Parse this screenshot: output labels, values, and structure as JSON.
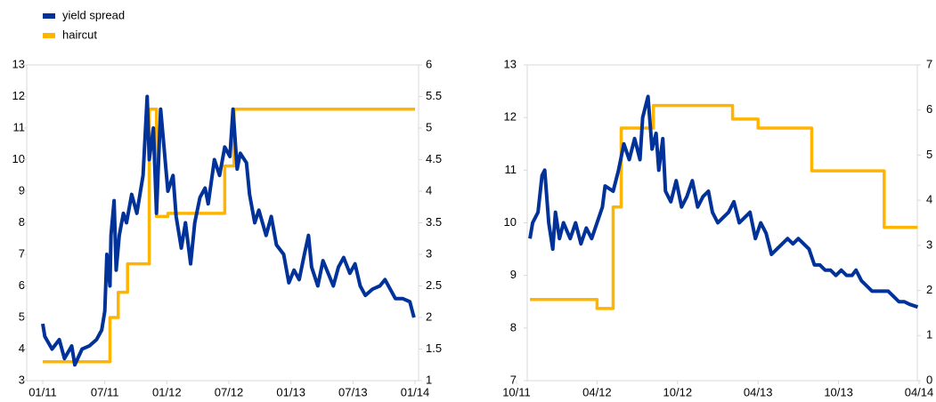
{
  "chart_data": [
    {
      "type": "line",
      "xticks": [
        {
          "value": 0,
          "label": "01/11"
        },
        {
          "value": 6,
          "label": "07/11"
        },
        {
          "value": 12,
          "label": "01/12"
        },
        {
          "value": 18,
          "label": "07/12"
        },
        {
          "value": 24,
          "label": "01/13"
        },
        {
          "value": 30,
          "label": "07/13"
        },
        {
          "value": 36,
          "label": "01/14"
        }
      ],
      "xlim": [
        0,
        36
      ],
      "ylim": [
        3,
        13
      ],
      "yticks": [
        3,
        4,
        5,
        6,
        7,
        8,
        9,
        10,
        11,
        12,
        13
      ],
      "y2lim": [
        1,
        6
      ],
      "y2ticks": [
        1,
        1.5,
        2,
        2.5,
        3,
        3.5,
        4,
        4.5,
        5,
        5.5,
        6
      ],
      "legend": "top-left",
      "series": [
        {
          "name": "haircut",
          "color": "#ffb400",
          "axis": "y2",
          "step": "post",
          "x": [
            0,
            6.5,
            7.3,
            8.2,
            10.3,
            11.0,
            12.1,
            17.6,
            18.5,
            36
          ],
          "values": [
            1.3,
            2.0,
            2.4,
            2.85,
            5.3,
            3.6,
            3.65,
            4.4,
            5.3,
            5.3
          ]
        },
        {
          "name": "yield spread",
          "color": "#003299",
          "axis": "y",
          "x": [
            0,
            0.2,
            0.9,
            1.6,
            2.1,
            2.8,
            3.1,
            3.8,
            4.5,
            5.2,
            5.7,
            6.0,
            6.2,
            6.5,
            6.6,
            6.9,
            7.1,
            7.4,
            7.8,
            8.1,
            8.6,
            9.1,
            9.7,
            10.1,
            10.3,
            10.7,
            11.0,
            11.4,
            11.7,
            12.1,
            12.6,
            12.9,
            13.4,
            13.8,
            14.3,
            14.7,
            15.2,
            15.7,
            16.0,
            16.6,
            17.1,
            17.6,
            18.1,
            18.4,
            18.8,
            19.1,
            19.7,
            20.0,
            20.5,
            20.9,
            21.6,
            22.1,
            22.6,
            23.3,
            23.8,
            24.3,
            24.8,
            25.3,
            25.7,
            26.0,
            26.6,
            27.1,
            27.6,
            28.1,
            28.6,
            29.1,
            29.7,
            30.2,
            30.7,
            31.2,
            31.9,
            32.6,
            33.1,
            33.6,
            34.1,
            34.8,
            35.5,
            35.9
          ],
          "values": [
            4.8,
            4.4,
            4.0,
            4.3,
            3.7,
            4.1,
            3.5,
            4.0,
            4.1,
            4.3,
            4.6,
            5.2,
            7.0,
            6.0,
            7.6,
            8.7,
            6.5,
            7.6,
            8.3,
            8.0,
            8.9,
            8.3,
            9.5,
            12.0,
            10.0,
            11.0,
            8.3,
            11.6,
            10.5,
            9.0,
            9.5,
            8.2,
            7.2,
            8.0,
            6.7,
            8.0,
            8.8,
            9.1,
            8.6,
            10.0,
            9.5,
            10.4,
            10.1,
            11.6,
            9.7,
            10.2,
            9.9,
            8.9,
            8.0,
            8.4,
            7.6,
            8.2,
            7.3,
            7.0,
            6.1,
            6.5,
            6.2,
            7.0,
            7.6,
            6.6,
            6.0,
            6.8,
            6.4,
            6.0,
            6.6,
            6.9,
            6.4,
            6.7,
            6.0,
            5.7,
            5.9,
            6.0,
            6.2,
            5.9,
            5.6,
            5.6,
            5.5,
            5.0
          ]
        }
      ]
    },
    {
      "type": "line",
      "xticks": [
        {
          "value": 0,
          "label": "10/11"
        },
        {
          "value": 6,
          "label": "04/12"
        },
        {
          "value": 12,
          "label": "10/12"
        },
        {
          "value": 18,
          "label": "04/13"
        },
        {
          "value": 24,
          "label": "10/13"
        },
        {
          "value": 30,
          "label": "04/14"
        }
      ],
      "xlim": [
        0,
        30
      ],
      "ylim": [
        7,
        13
      ],
      "yticks": [
        7,
        8,
        9,
        10,
        11,
        12,
        13
      ],
      "y2lim": [
        0,
        7
      ],
      "y2ticks": [
        0,
        1,
        2,
        3,
        4,
        5,
        6,
        7
      ],
      "series": [
        {
          "color": "#ffb400",
          "axis": "y2",
          "step": "post",
          "x": [
            1.0,
            6.0,
            7.2,
            7.8,
            10.2,
            16.1,
            18.0,
            22.0,
            27.4,
            29.9
          ],
          "values": [
            1.8,
            1.6,
            3.85,
            5.6,
            6.1,
            5.8,
            5.6,
            4.65,
            3.4,
            3.4
          ]
        },
        {
          "color": "#003299",
          "axis": "y",
          "x": [
            1.0,
            1.2,
            1.6,
            1.9,
            2.1,
            2.4,
            2.7,
            2.9,
            3.2,
            3.5,
            4.0,
            4.4,
            4.8,
            5.2,
            5.6,
            6.0,
            6.4,
            6.6,
            7.2,
            7.6,
            8.0,
            8.4,
            8.8,
            9.2,
            9.4,
            9.8,
            10.1,
            10.4,
            10.6,
            10.9,
            11.1,
            11.5,
            11.9,
            12.3,
            12.7,
            13.1,
            13.5,
            13.9,
            14.3,
            14.6,
            15.0,
            15.4,
            15.8,
            16.2,
            16.6,
            17.0,
            17.4,
            17.8,
            18.2,
            18.6,
            19.0,
            19.4,
            19.8,
            20.2,
            20.6,
            21.0,
            21.4,
            21.8,
            22.2,
            22.6,
            23.0,
            23.4,
            23.8,
            24.2,
            24.6,
            25.0,
            25.3,
            25.7,
            26.1,
            26.5,
            26.9,
            27.3,
            27.7,
            28.1,
            28.5,
            28.9,
            29.3,
            29.9
          ],
          "values": [
            9.7,
            10.0,
            10.2,
            10.9,
            11.0,
            10.0,
            9.5,
            10.2,
            9.7,
            10.0,
            9.7,
            10.0,
            9.6,
            9.9,
            9.7,
            10.0,
            10.3,
            10.7,
            10.6,
            11.0,
            11.5,
            11.2,
            11.6,
            11.2,
            12.0,
            12.4,
            11.4,
            11.7,
            11.0,
            11.6,
            10.6,
            10.4,
            10.8,
            10.3,
            10.5,
            10.8,
            10.3,
            10.5,
            10.6,
            10.2,
            10.0,
            10.1,
            10.2,
            10.4,
            10.0,
            10.1,
            10.2,
            9.7,
            10.0,
            9.8,
            9.4,
            9.5,
            9.6,
            9.7,
            9.6,
            9.7,
            9.6,
            9.5,
            9.2,
            9.2,
            9.1,
            9.1,
            9.0,
            9.1,
            9.0,
            9.0,
            9.1,
            8.9,
            8.8,
            8.7,
            8.7,
            8.7,
            8.7,
            8.6,
            8.5,
            8.5,
            8.45,
            8.4
          ]
        }
      ]
    }
  ]
}
